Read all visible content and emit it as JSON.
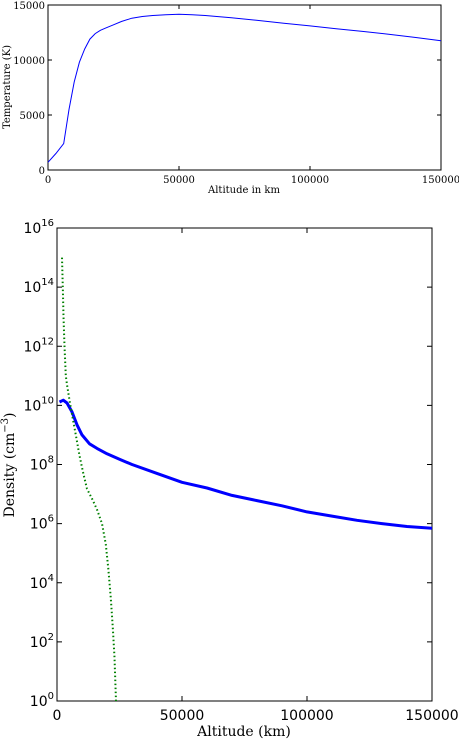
{
  "chart_data": [
    {
      "type": "line",
      "title": "",
      "xlabel": "Altitude in km",
      "ylabel": "Temperature (K)",
      "xlim": [
        0,
        150000
      ],
      "ylim": [
        0,
        15000
      ],
      "x_ticks": [
        0,
        50000,
        100000,
        150000
      ],
      "x_tick_labels": [
        "0",
        "50000",
        "100000",
        "150000"
      ],
      "y_ticks": [
        0,
        5000,
        10000,
        15000
      ],
      "y_tick_labels": [
        "0",
        "5000",
        "10000",
        "15000"
      ],
      "grid": false,
      "legend": "none",
      "series": [
        {
          "color": "#0000ff",
          "style": "solid",
          "x": [
            0,
            3000,
            6000,
            8000,
            10000,
            12000,
            14000,
            16000,
            18000,
            20000,
            22000,
            25000,
            28000,
            32000,
            36000,
            40000,
            45000,
            50000,
            55000,
            60000,
            70000,
            80000,
            90000,
            100000,
            110000,
            120000,
            130000,
            140000,
            150000
          ],
          "y": [
            700,
            1500,
            2400,
            5500,
            8000,
            9800,
            11000,
            11900,
            12400,
            12700,
            12900,
            13200,
            13500,
            13800,
            13950,
            14050,
            14120,
            14150,
            14120,
            14050,
            13850,
            13600,
            13350,
            13100,
            12850,
            12600,
            12350,
            12050,
            11750
          ]
        }
      ]
    },
    {
      "type": "line",
      "title": "",
      "xlabel": "Altitude (km)",
      "ylabel": "Density (cm",
      "ylabel_exponent": "−3",
      "ylabel_close": ")",
      "xlim": [
        0,
        150000
      ],
      "ylim": [
        1,
        1e+16
      ],
      "yscale": "log",
      "x_ticks": [
        0,
        50000,
        100000,
        150000
      ],
      "x_tick_labels": [
        "0",
        "50000",
        "100000",
        "150000"
      ],
      "y_tick_exponents": [
        0,
        2,
        4,
        6,
        8,
        10,
        12,
        14,
        16
      ],
      "y_tick_base": "10",
      "y_tick_exponent_labels": [
        "0",
        "2",
        "4",
        "6",
        "8",
        "10",
        "12",
        "14",
        "16"
      ],
      "grid": false,
      "legend": "none",
      "series": [
        {
          "color": "#0000ff",
          "style": "solid-thick",
          "x": [
            1000,
            2500,
            4000,
            6000,
            8000,
            10000,
            13000,
            16000,
            20000,
            25000,
            30000,
            40000,
            50000,
            60000,
            70000,
            80000,
            90000,
            100000,
            110000,
            120000,
            130000,
            140000,
            150000
          ],
          "y": [
            13000000000.0,
            15000000000.0,
            12000000000.0,
            6000000000.0,
            2200000000.0,
            1000000000.0,
            500000000.0,
            350000000.0,
            230000000.0,
            150000000.0,
            100000000.0,
            50000000.0,
            25000000.0,
            16000000.0,
            9000000.0,
            6000000.0,
            4000000.0,
            2500000.0,
            1800000.0,
            1300000.0,
            1000000.0,
            800000.0,
            700000.0
          ]
        },
        {
          "color": "#008000",
          "style": "dotted",
          "x": [
            2000,
            2300,
            2600,
            3000,
            3500,
            4000,
            5000,
            6000,
            7500,
            9000,
            10500,
            12000,
            14000,
            16000,
            18000,
            19500,
            20500,
            21500,
            22300,
            23000,
            23400,
            23600
          ],
          "y": [
            1000000000000000.0,
            100000000000000.0,
            10000000000000.0,
            1000000000000.0,
            100000000000.0,
            50000000000.0,
            15000000000.0,
            5000000000.0,
            1000000000.0,
            200000000.0,
            50000000.0,
            15000000.0,
            7000000.0,
            3000000.0,
            1000000.0,
            200000.0,
            30000.0,
            3000.0,
            300,
            30,
            3,
            1
          ]
        }
      ]
    }
  ]
}
